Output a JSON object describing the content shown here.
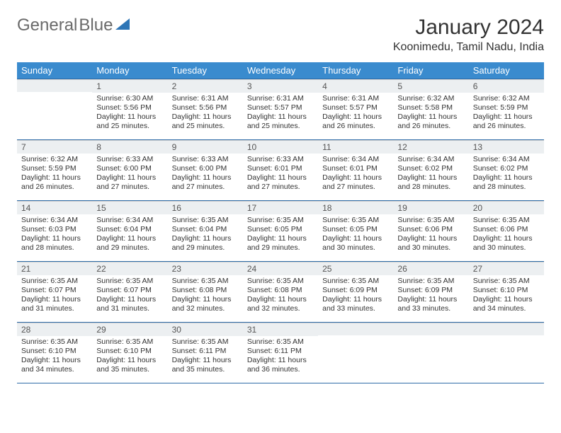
{
  "logo": {
    "general": "General",
    "blue": "Blue"
  },
  "title": "January 2024",
  "location": "Koonimedu, Tamil Nadu, India",
  "colors": {
    "header_bg": "#3a8bce",
    "header_text": "#ffffff",
    "daynum_bg": "#eceff1",
    "rule": "#2e6ca8"
  },
  "weekdays": [
    "Sunday",
    "Monday",
    "Tuesday",
    "Wednesday",
    "Thursday",
    "Friday",
    "Saturday"
  ],
  "weeks": [
    [
      null,
      {
        "n": "1",
        "sr": "Sunrise: 6:30 AM",
        "ss": "Sunset: 5:56 PM",
        "dl": "Daylight: 11 hours and 25 minutes."
      },
      {
        "n": "2",
        "sr": "Sunrise: 6:31 AM",
        "ss": "Sunset: 5:56 PM",
        "dl": "Daylight: 11 hours and 25 minutes."
      },
      {
        "n": "3",
        "sr": "Sunrise: 6:31 AM",
        "ss": "Sunset: 5:57 PM",
        "dl": "Daylight: 11 hours and 25 minutes."
      },
      {
        "n": "4",
        "sr": "Sunrise: 6:31 AM",
        "ss": "Sunset: 5:57 PM",
        "dl": "Daylight: 11 hours and 26 minutes."
      },
      {
        "n": "5",
        "sr": "Sunrise: 6:32 AM",
        "ss": "Sunset: 5:58 PM",
        "dl": "Daylight: 11 hours and 26 minutes."
      },
      {
        "n": "6",
        "sr": "Sunrise: 6:32 AM",
        "ss": "Sunset: 5:59 PM",
        "dl": "Daylight: 11 hours and 26 minutes."
      }
    ],
    [
      {
        "n": "7",
        "sr": "Sunrise: 6:32 AM",
        "ss": "Sunset: 5:59 PM",
        "dl": "Daylight: 11 hours and 26 minutes."
      },
      {
        "n": "8",
        "sr": "Sunrise: 6:33 AM",
        "ss": "Sunset: 6:00 PM",
        "dl": "Daylight: 11 hours and 27 minutes."
      },
      {
        "n": "9",
        "sr": "Sunrise: 6:33 AM",
        "ss": "Sunset: 6:00 PM",
        "dl": "Daylight: 11 hours and 27 minutes."
      },
      {
        "n": "10",
        "sr": "Sunrise: 6:33 AM",
        "ss": "Sunset: 6:01 PM",
        "dl": "Daylight: 11 hours and 27 minutes."
      },
      {
        "n": "11",
        "sr": "Sunrise: 6:34 AM",
        "ss": "Sunset: 6:01 PM",
        "dl": "Daylight: 11 hours and 27 minutes."
      },
      {
        "n": "12",
        "sr": "Sunrise: 6:34 AM",
        "ss": "Sunset: 6:02 PM",
        "dl": "Daylight: 11 hours and 28 minutes."
      },
      {
        "n": "13",
        "sr": "Sunrise: 6:34 AM",
        "ss": "Sunset: 6:02 PM",
        "dl": "Daylight: 11 hours and 28 minutes."
      }
    ],
    [
      {
        "n": "14",
        "sr": "Sunrise: 6:34 AM",
        "ss": "Sunset: 6:03 PM",
        "dl": "Daylight: 11 hours and 28 minutes."
      },
      {
        "n": "15",
        "sr": "Sunrise: 6:34 AM",
        "ss": "Sunset: 6:04 PM",
        "dl": "Daylight: 11 hours and 29 minutes."
      },
      {
        "n": "16",
        "sr": "Sunrise: 6:35 AM",
        "ss": "Sunset: 6:04 PM",
        "dl": "Daylight: 11 hours and 29 minutes."
      },
      {
        "n": "17",
        "sr": "Sunrise: 6:35 AM",
        "ss": "Sunset: 6:05 PM",
        "dl": "Daylight: 11 hours and 29 minutes."
      },
      {
        "n": "18",
        "sr": "Sunrise: 6:35 AM",
        "ss": "Sunset: 6:05 PM",
        "dl": "Daylight: 11 hours and 30 minutes."
      },
      {
        "n": "19",
        "sr": "Sunrise: 6:35 AM",
        "ss": "Sunset: 6:06 PM",
        "dl": "Daylight: 11 hours and 30 minutes."
      },
      {
        "n": "20",
        "sr": "Sunrise: 6:35 AM",
        "ss": "Sunset: 6:06 PM",
        "dl": "Daylight: 11 hours and 30 minutes."
      }
    ],
    [
      {
        "n": "21",
        "sr": "Sunrise: 6:35 AM",
        "ss": "Sunset: 6:07 PM",
        "dl": "Daylight: 11 hours and 31 minutes."
      },
      {
        "n": "22",
        "sr": "Sunrise: 6:35 AM",
        "ss": "Sunset: 6:07 PM",
        "dl": "Daylight: 11 hours and 31 minutes."
      },
      {
        "n": "23",
        "sr": "Sunrise: 6:35 AM",
        "ss": "Sunset: 6:08 PM",
        "dl": "Daylight: 11 hours and 32 minutes."
      },
      {
        "n": "24",
        "sr": "Sunrise: 6:35 AM",
        "ss": "Sunset: 6:08 PM",
        "dl": "Daylight: 11 hours and 32 minutes."
      },
      {
        "n": "25",
        "sr": "Sunrise: 6:35 AM",
        "ss": "Sunset: 6:09 PM",
        "dl": "Daylight: 11 hours and 33 minutes."
      },
      {
        "n": "26",
        "sr": "Sunrise: 6:35 AM",
        "ss": "Sunset: 6:09 PM",
        "dl": "Daylight: 11 hours and 33 minutes."
      },
      {
        "n": "27",
        "sr": "Sunrise: 6:35 AM",
        "ss": "Sunset: 6:10 PM",
        "dl": "Daylight: 11 hours and 34 minutes."
      }
    ],
    [
      {
        "n": "28",
        "sr": "Sunrise: 6:35 AM",
        "ss": "Sunset: 6:10 PM",
        "dl": "Daylight: 11 hours and 34 minutes."
      },
      {
        "n": "29",
        "sr": "Sunrise: 6:35 AM",
        "ss": "Sunset: 6:10 PM",
        "dl": "Daylight: 11 hours and 35 minutes."
      },
      {
        "n": "30",
        "sr": "Sunrise: 6:35 AM",
        "ss": "Sunset: 6:11 PM",
        "dl": "Daylight: 11 hours and 35 minutes."
      },
      {
        "n": "31",
        "sr": "Sunrise: 6:35 AM",
        "ss": "Sunset: 6:11 PM",
        "dl": "Daylight: 11 hours and 36 minutes."
      },
      null,
      null,
      null
    ]
  ]
}
